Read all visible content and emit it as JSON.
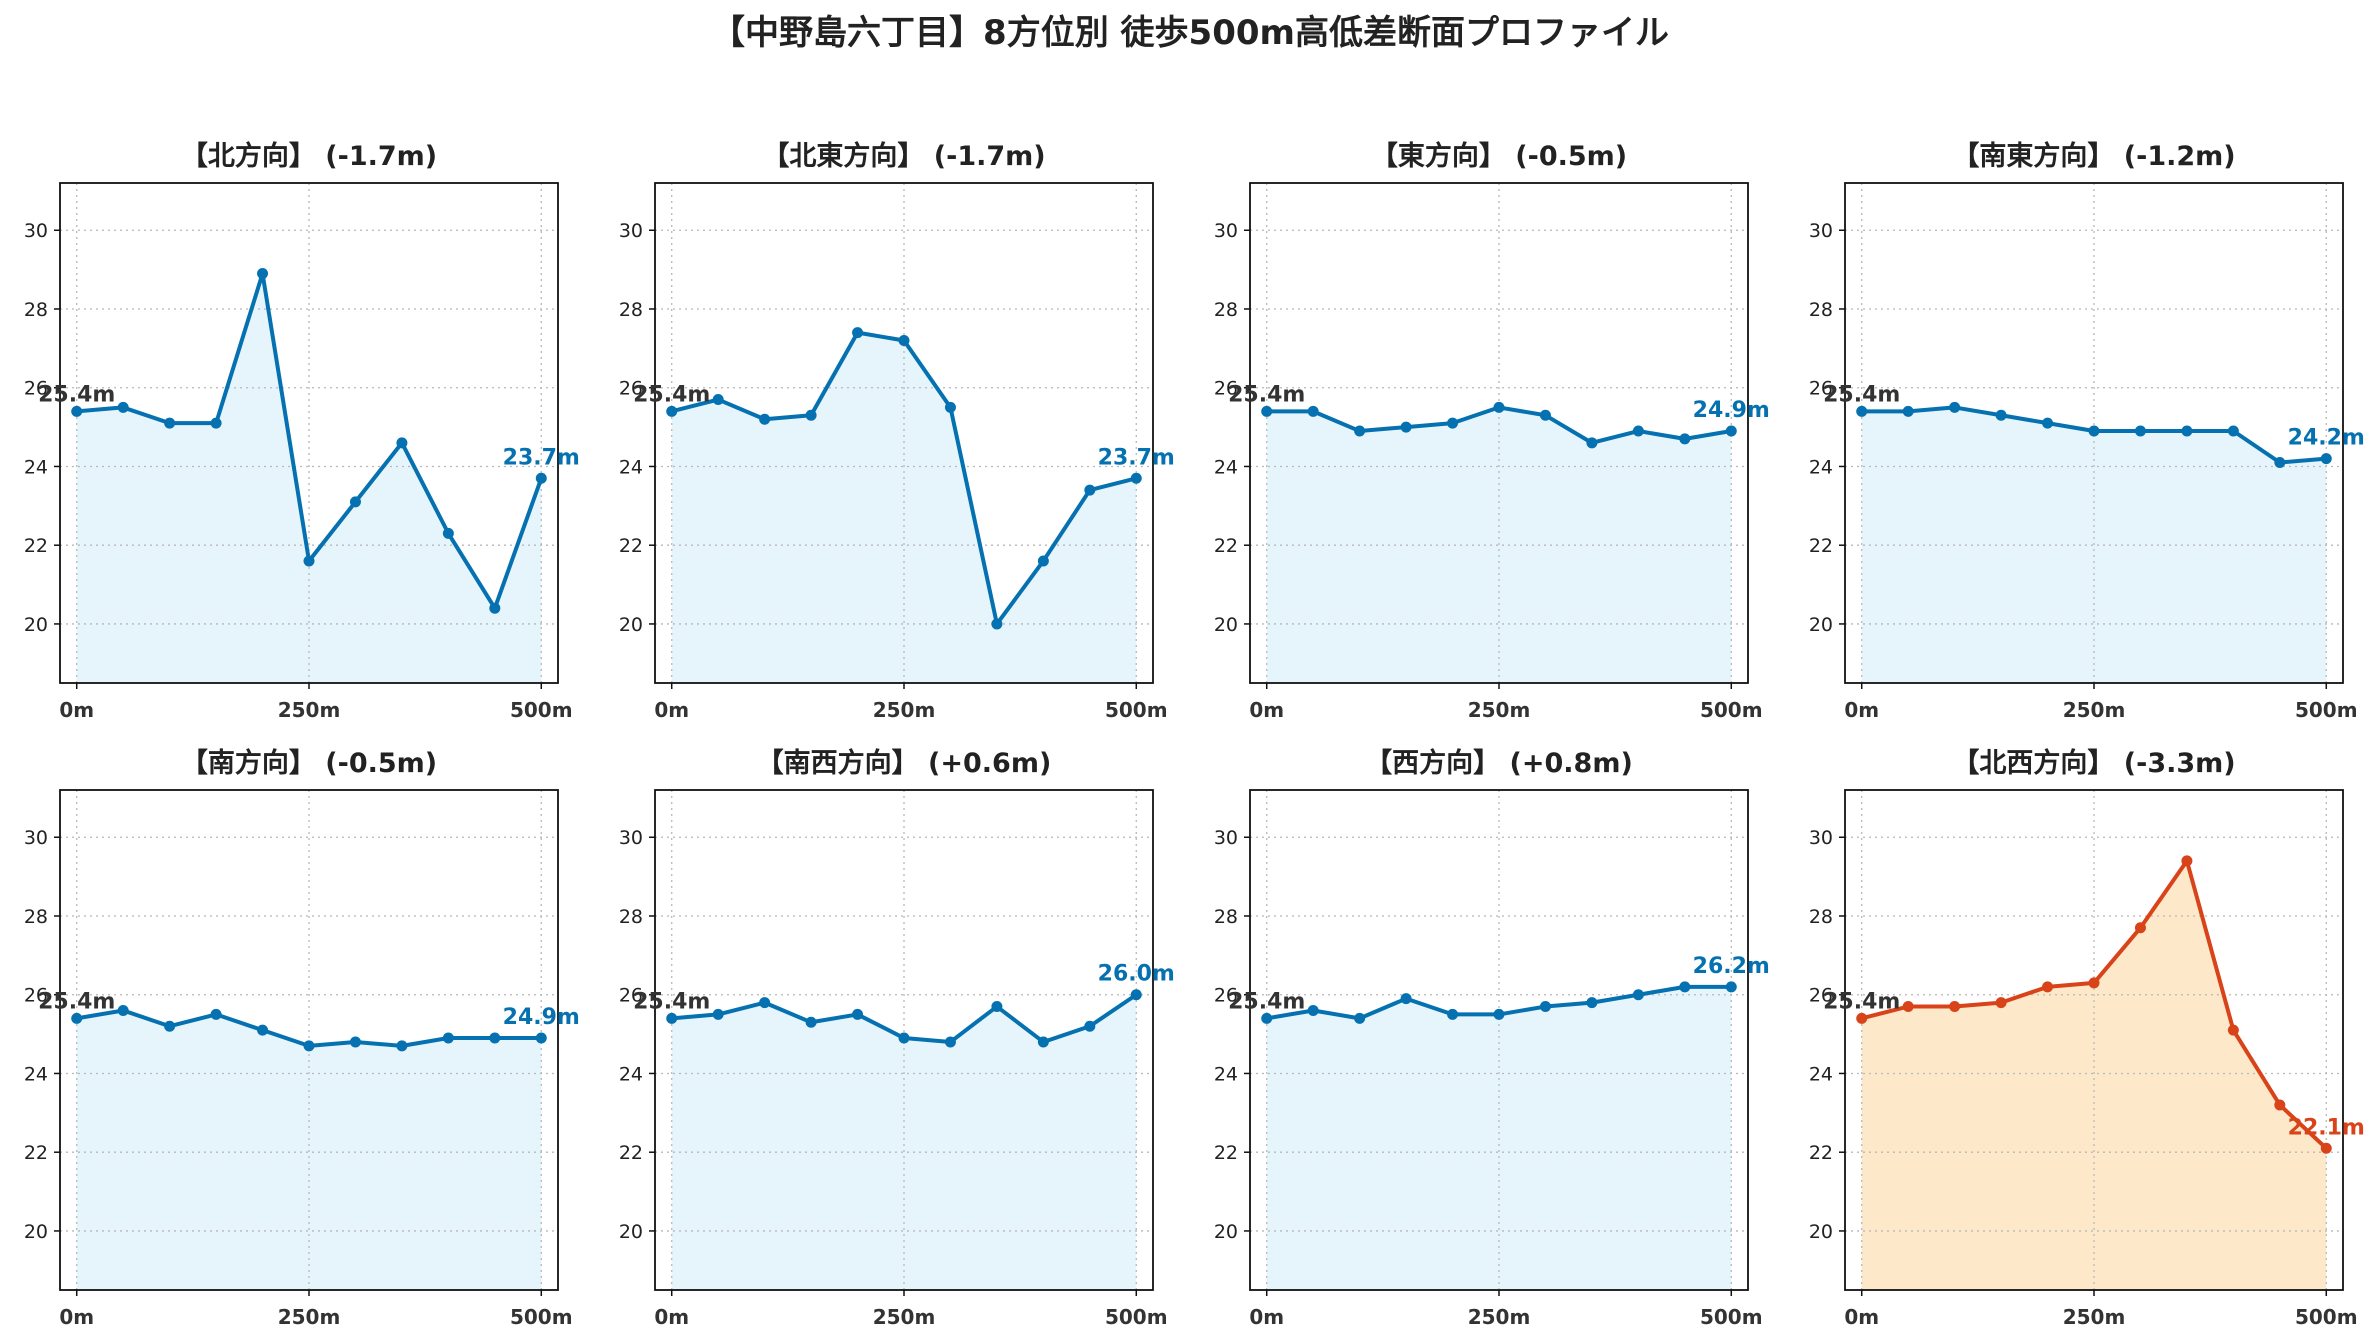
{
  "title": "【中野島六丁目】8方位別 徒歩500m高低差断面プロファイル",
  "colors": {
    "normal_line": "#0571b0",
    "normal_fill": "#e6f5fc",
    "highlight_line": "#d8431a",
    "highlight_fill": "#fde8c9",
    "start_label": "#333333"
  },
  "chart_data": [
    {
      "type": "area",
      "title": "【北方向】 (-1.7m)",
      "x": [
        0,
        50,
        100,
        150,
        200,
        250,
        300,
        350,
        400,
        450,
        500
      ],
      "values": [
        25.4,
        25.5,
        25.1,
        25.1,
        28.9,
        21.6,
        23.1,
        24.6,
        22.3,
        20.4,
        23.7
      ],
      "start_label": "25.4m",
      "end_label": "23.7m",
      "highlight": false,
      "ylim": [
        18.5,
        31.2
      ],
      "xlim": [
        -18,
        518
      ],
      "yticks": [
        20,
        22,
        24,
        26,
        28,
        30
      ],
      "xticks": [
        0,
        250,
        500
      ],
      "xtick_labels": [
        "0m",
        "250m",
        "500m"
      ],
      "grid": true
    },
    {
      "type": "area",
      "title": "【北東方向】 (-1.7m)",
      "x": [
        0,
        50,
        100,
        150,
        200,
        250,
        300,
        350,
        400,
        450,
        500
      ],
      "values": [
        25.4,
        25.7,
        25.2,
        25.3,
        27.4,
        27.2,
        25.5,
        20.0,
        21.6,
        23.4,
        23.7
      ],
      "start_label": "25.4m",
      "end_label": "23.7m",
      "highlight": false,
      "ylim": [
        18.5,
        31.2
      ],
      "xlim": [
        -18,
        518
      ],
      "yticks": [
        20,
        22,
        24,
        26,
        28,
        30
      ],
      "xticks": [
        0,
        250,
        500
      ],
      "xtick_labels": [
        "0m",
        "250m",
        "500m"
      ],
      "grid": true
    },
    {
      "type": "area",
      "title": "【東方向】 (-0.5m)",
      "x": [
        0,
        50,
        100,
        150,
        200,
        250,
        300,
        350,
        400,
        450,
        500
      ],
      "values": [
        25.4,
        25.4,
        24.9,
        25.0,
        25.1,
        25.5,
        25.3,
        24.6,
        24.9,
        24.7,
        24.9
      ],
      "start_label": "25.4m",
      "end_label": "24.9m",
      "highlight": false,
      "ylim": [
        18.5,
        31.2
      ],
      "xlim": [
        -18,
        518
      ],
      "yticks": [
        20,
        22,
        24,
        26,
        28,
        30
      ],
      "xticks": [
        0,
        250,
        500
      ],
      "xtick_labels": [
        "0m",
        "250m",
        "500m"
      ],
      "grid": true
    },
    {
      "type": "area",
      "title": "【南東方向】 (-1.2m)",
      "x": [
        0,
        50,
        100,
        150,
        200,
        250,
        300,
        350,
        400,
        450,
        500
      ],
      "values": [
        25.4,
        25.4,
        25.5,
        25.3,
        25.1,
        24.9,
        24.9,
        24.9,
        24.9,
        24.1,
        24.2
      ],
      "start_label": "25.4m",
      "end_label": "24.2m",
      "highlight": false,
      "ylim": [
        18.5,
        31.2
      ],
      "xlim": [
        -18,
        518
      ],
      "yticks": [
        20,
        22,
        24,
        26,
        28,
        30
      ],
      "xticks": [
        0,
        250,
        500
      ],
      "xtick_labels": [
        "0m",
        "250m",
        "500m"
      ],
      "grid": true
    },
    {
      "type": "area",
      "title": "【南方向】 (-0.5m)",
      "x": [
        0,
        50,
        100,
        150,
        200,
        250,
        300,
        350,
        400,
        450,
        500
      ],
      "values": [
        25.4,
        25.6,
        25.2,
        25.5,
        25.1,
        24.7,
        24.8,
        24.7,
        24.9,
        24.9,
        24.9
      ],
      "start_label": "25.4m",
      "end_label": "24.9m",
      "highlight": false,
      "ylim": [
        18.5,
        31.2
      ],
      "xlim": [
        -18,
        518
      ],
      "yticks": [
        20,
        22,
        24,
        26,
        28,
        30
      ],
      "xticks": [
        0,
        250,
        500
      ],
      "xtick_labels": [
        "0m",
        "250m",
        "500m"
      ],
      "grid": true
    },
    {
      "type": "area",
      "title": "【南西方向】 (+0.6m)",
      "x": [
        0,
        50,
        100,
        150,
        200,
        250,
        300,
        350,
        400,
        450,
        500
      ],
      "values": [
        25.4,
        25.5,
        25.8,
        25.3,
        25.5,
        24.9,
        24.8,
        25.7,
        24.8,
        25.2,
        26.0
      ],
      "start_label": "25.4m",
      "end_label": "26.0m",
      "highlight": false,
      "ylim": [
        18.5,
        31.2
      ],
      "xlim": [
        -18,
        518
      ],
      "yticks": [
        20,
        22,
        24,
        26,
        28,
        30
      ],
      "xticks": [
        0,
        250,
        500
      ],
      "xtick_labels": [
        "0m",
        "250m",
        "500m"
      ],
      "grid": true
    },
    {
      "type": "area",
      "title": "【西方向】 (+0.8m)",
      "x": [
        0,
        50,
        100,
        150,
        200,
        250,
        300,
        350,
        400,
        450,
        500
      ],
      "values": [
        25.4,
        25.6,
        25.4,
        25.9,
        25.5,
        25.5,
        25.7,
        25.8,
        26.0,
        26.2,
        26.2
      ],
      "start_label": "25.4m",
      "end_label": "26.2m",
      "highlight": false,
      "ylim": [
        18.5,
        31.2
      ],
      "xlim": [
        -18,
        518
      ],
      "yticks": [
        20,
        22,
        24,
        26,
        28,
        30
      ],
      "xticks": [
        0,
        250,
        500
      ],
      "xtick_labels": [
        "0m",
        "250m",
        "500m"
      ],
      "grid": true
    },
    {
      "type": "area",
      "title": "【北西方向】 (-3.3m)",
      "x": [
        0,
        50,
        100,
        150,
        200,
        250,
        300,
        350,
        400,
        450,
        500
      ],
      "values": [
        25.4,
        25.7,
        25.7,
        25.8,
        26.2,
        26.3,
        27.7,
        29.4,
        25.1,
        23.2,
        22.1
      ],
      "start_label": "25.4m",
      "end_label": "22.1m",
      "highlight": true,
      "ylim": [
        18.5,
        31.2
      ],
      "xlim": [
        -18,
        518
      ],
      "yticks": [
        20,
        22,
        24,
        26,
        28,
        30
      ],
      "xticks": [
        0,
        250,
        500
      ],
      "xtick_labels": [
        "0m",
        "250m",
        "500m"
      ],
      "grid": true
    }
  ]
}
